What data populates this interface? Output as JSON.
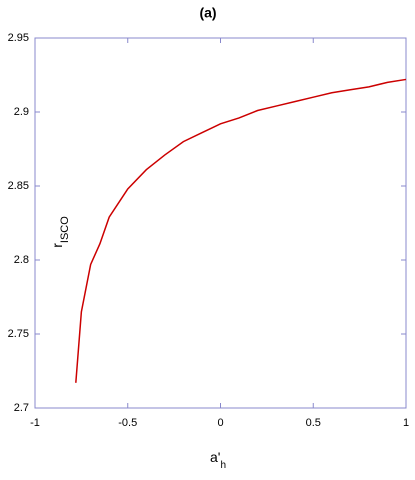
{
  "chart_data": {
    "type": "line",
    "title": "(a)",
    "xlabel": "a'",
    "xlabel_sub": "h",
    "ylabel": "r",
    "ylabel_sub": "ISCO",
    "x": [
      -0.78,
      -0.75,
      -0.7,
      -0.65,
      -0.6,
      -0.5,
      -0.4,
      -0.3,
      -0.2,
      -0.1,
      0,
      0.1,
      0.2,
      0.3,
      0.4,
      0.5,
      0.6,
      0.7,
      0.8,
      0.9,
      1
    ],
    "series": [
      {
        "color": "#cc0000",
        "values": [
          2.717,
          2.765,
          2.797,
          2.811,
          2.829,
          2.848,
          2.861,
          2.871,
          2.88,
          2.886,
          2.892,
          2.896,
          2.901,
          2.904,
          2.907,
          2.91,
          2.913,
          2.915,
          2.917,
          2.92,
          2.922
        ]
      }
    ],
    "xlim": [
      -1,
      1
    ],
    "ylim": [
      2.7,
      2.95
    ],
    "xticks": [
      -1,
      -0.5,
      0,
      0.5,
      1
    ],
    "yticks": [
      2.7,
      2.75,
      2.8,
      2.85,
      2.9,
      2.95
    ],
    "frame_color": "#8888cc"
  }
}
